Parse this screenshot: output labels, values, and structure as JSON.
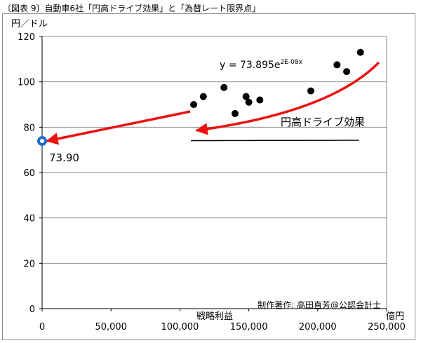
{
  "figure_title": "〔図表 9〕自動車6社「円高ドライブ効果」と「為替レート限界点」",
  "chart_data": {
    "type": "scatter",
    "ylabel": "円／ドル",
    "xlabel": "戦略利益",
    "x_unit": "億円",
    "xlim": [
      0,
      250000
    ],
    "ylim": [
      0,
      120
    ],
    "x_ticks": [
      "0",
      "50,000",
      "100,000",
      "150,000",
      "200,000",
      "250,000"
    ],
    "y_ticks": [
      "0",
      "20",
      "40",
      "60",
      "80",
      "100",
      "120"
    ],
    "grid": true,
    "points": [
      {
        "x": 110000,
        "y": 90
      },
      {
        "x": 117000,
        "y": 93.5
      },
      {
        "x": 132000,
        "y": 97.5
      },
      {
        "x": 140000,
        "y": 86
      },
      {
        "x": 148000,
        "y": 93.5
      },
      {
        "x": 150000,
        "y": 91
      },
      {
        "x": 158000,
        "y": 92
      },
      {
        "x": 195000,
        "y": 96
      },
      {
        "x": 214000,
        "y": 107.5
      },
      {
        "x": 221000,
        "y": 104.5
      },
      {
        "x": 231000,
        "y": 113
      }
    ],
    "trendline": {
      "x_range": [
        108000,
        230000
      ],
      "a": 73.895,
      "b": 2e-08,
      "label_main": "y = 73.895e",
      "label_exp": "2E-08x"
    },
    "intercept": {
      "x": 0,
      "y": 73.9,
      "label": "73.90"
    },
    "annotation": "円高ドライブ効果",
    "credit": "制作著作: 高田直芳@公認会計士",
    "colors": {
      "points": "#000000",
      "arrows": "#ee1111",
      "intercept": "#1f6fc5",
      "grid": "#8c8c8c"
    }
  }
}
